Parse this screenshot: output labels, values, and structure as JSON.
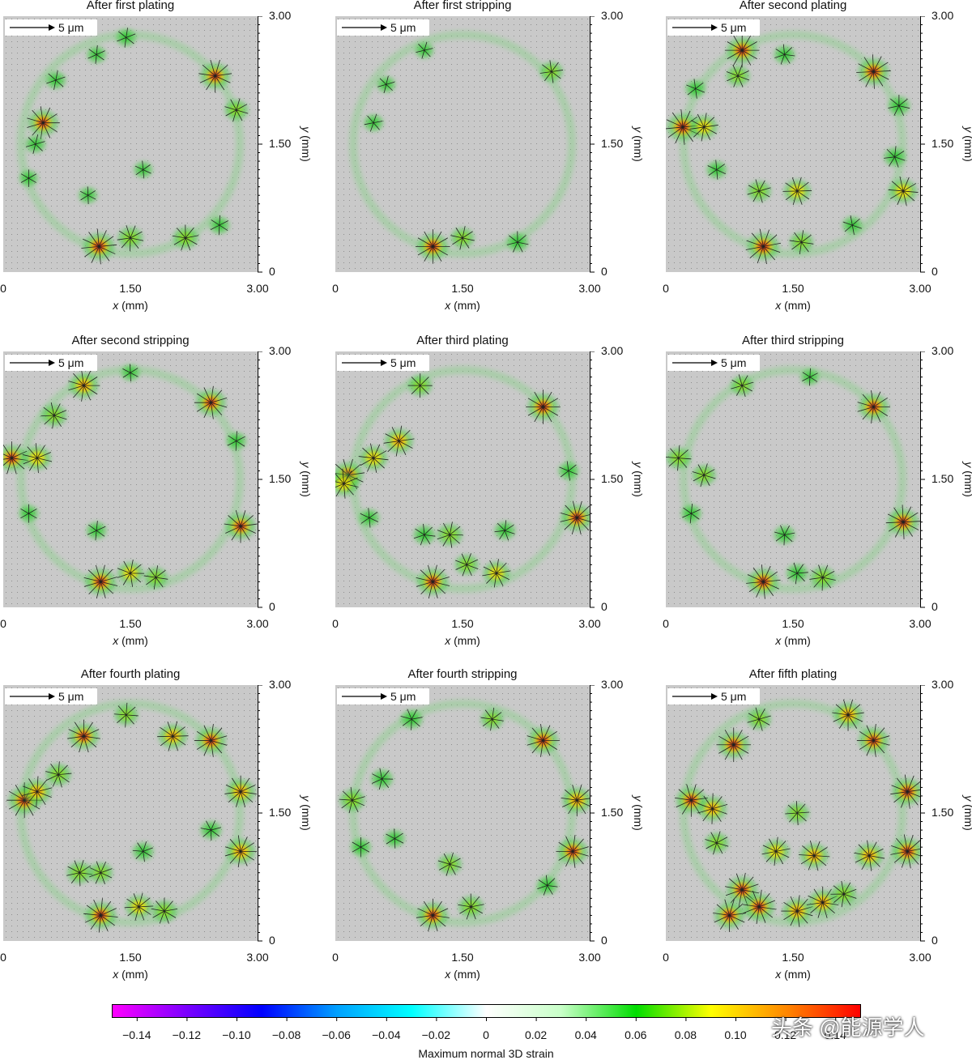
{
  "chart_data": {
    "type": "heatmap",
    "panels": [
      {
        "title": "After first plating",
        "spots": [
          [
            0.47,
            1.75,
            0.9
          ],
          [
            2.5,
            2.3,
            0.9
          ],
          [
            1.13,
            0.3,
            1.0
          ],
          [
            1.5,
            0.4,
            0.6
          ],
          [
            2.15,
            0.4,
            0.6
          ],
          [
            2.75,
            1.9,
            0.5
          ],
          [
            0.38,
            1.5,
            0.3
          ],
          [
            0.62,
            2.25,
            0.3
          ],
          [
            1.45,
            2.75,
            0.3
          ],
          [
            1.1,
            2.55,
            0.25
          ],
          [
            2.55,
            0.55,
            0.3
          ],
          [
            0.3,
            1.1,
            0.2
          ],
          [
            1.0,
            0.9,
            0.2
          ],
          [
            1.65,
            1.2,
            0.2
          ]
        ]
      },
      {
        "title": "After first stripping",
        "spots": [
          [
            1.15,
            0.3,
            0.95
          ],
          [
            1.5,
            0.4,
            0.5
          ],
          [
            2.15,
            0.35,
            0.4
          ],
          [
            2.55,
            2.35,
            0.45
          ],
          [
            0.45,
            1.75,
            0.25
          ],
          [
            1.05,
            2.6,
            0.2
          ],
          [
            0.6,
            2.2,
            0.2
          ]
        ]
      },
      {
        "title": "After second plating",
        "spots": [
          [
            0.9,
            2.6,
            0.95
          ],
          [
            2.45,
            2.35,
            0.95
          ],
          [
            0.2,
            1.7,
            1.0
          ],
          [
            0.45,
            1.7,
            0.7
          ],
          [
            1.15,
            0.3,
            1.0
          ],
          [
            1.55,
            0.95,
            0.7
          ],
          [
            1.1,
            0.95,
            0.5
          ],
          [
            2.8,
            0.95,
            0.75
          ],
          [
            1.6,
            0.35,
            0.5
          ],
          [
            0.85,
            2.3,
            0.5
          ],
          [
            1.4,
            2.55,
            0.35
          ],
          [
            2.75,
            1.95,
            0.4
          ],
          [
            2.7,
            1.35,
            0.4
          ],
          [
            0.6,
            1.2,
            0.3
          ],
          [
            0.35,
            2.15,
            0.3
          ],
          [
            2.2,
            0.55,
            0.3
          ]
        ]
      },
      {
        "title": "After second stripping",
        "spots": [
          [
            0.95,
            2.6,
            0.85
          ],
          [
            0.6,
            2.25,
            0.6
          ],
          [
            2.45,
            2.4,
            0.9
          ],
          [
            0.1,
            1.75,
            0.9
          ],
          [
            0.4,
            1.75,
            0.75
          ],
          [
            2.8,
            0.95,
            0.9
          ],
          [
            1.15,
            0.3,
            0.95
          ],
          [
            1.5,
            0.4,
            0.65
          ],
          [
            1.8,
            0.35,
            0.5
          ],
          [
            1.1,
            0.9,
            0.3
          ],
          [
            2.75,
            1.95,
            0.3
          ],
          [
            0.3,
            1.1,
            0.25
          ],
          [
            1.5,
            2.75,
            0.2
          ]
        ]
      },
      {
        "title": "After third plating",
        "spots": [
          [
            2.45,
            2.35,
            0.95
          ],
          [
            0.15,
            1.55,
            0.9
          ],
          [
            0.45,
            1.75,
            0.75
          ],
          [
            0.75,
            1.95,
            0.8
          ],
          [
            0.1,
            1.45,
            0.75
          ],
          [
            2.85,
            1.05,
            0.95
          ],
          [
            1.15,
            0.3,
            0.95
          ],
          [
            1.35,
            0.85,
            0.6
          ],
          [
            1.9,
            0.4,
            0.7
          ],
          [
            1.55,
            0.5,
            0.5
          ],
          [
            1.05,
            0.85,
            0.4
          ],
          [
            1.0,
            2.6,
            0.5
          ],
          [
            2.0,
            0.9,
            0.35
          ],
          [
            0.4,
            1.05,
            0.3
          ],
          [
            2.75,
            1.6,
            0.3
          ]
        ]
      },
      {
        "title": "After third stripping",
        "spots": [
          [
            2.45,
            2.35,
            0.9
          ],
          [
            2.8,
            1.0,
            0.95
          ],
          [
            1.15,
            0.3,
            0.95
          ],
          [
            1.85,
            0.35,
            0.6
          ],
          [
            0.15,
            1.75,
            0.55
          ],
          [
            0.45,
            1.55,
            0.5
          ],
          [
            0.9,
            2.6,
            0.45
          ],
          [
            1.4,
            0.85,
            0.35
          ],
          [
            1.55,
            0.4,
            0.4
          ],
          [
            0.3,
            1.1,
            0.3
          ],
          [
            1.7,
            2.7,
            0.2
          ]
        ]
      },
      {
        "title": "After fourth plating",
        "spots": [
          [
            0.25,
            1.65,
            1.0
          ],
          [
            0.4,
            1.75,
            0.8
          ],
          [
            0.65,
            1.95,
            0.6
          ],
          [
            0.95,
            2.4,
            0.9
          ],
          [
            1.45,
            2.65,
            0.5
          ],
          [
            2.0,
            2.4,
            0.8
          ],
          [
            2.45,
            2.35,
            0.9
          ],
          [
            2.8,
            1.75,
            0.85
          ],
          [
            2.8,
            1.05,
            0.85
          ],
          [
            1.15,
            0.3,
            0.95
          ],
          [
            1.6,
            0.4,
            0.7
          ],
          [
            1.9,
            0.35,
            0.6
          ],
          [
            0.9,
            0.8,
            0.6
          ],
          [
            1.15,
            0.8,
            0.5
          ],
          [
            1.65,
            1.05,
            0.35
          ],
          [
            2.45,
            1.3,
            0.35
          ]
        ]
      },
      {
        "title": "After fourth stripping",
        "spots": [
          [
            2.45,
            2.35,
            0.9
          ],
          [
            2.85,
            1.65,
            0.85
          ],
          [
            2.8,
            1.05,
            0.9
          ],
          [
            1.15,
            0.3,
            0.9
          ],
          [
            1.6,
            0.4,
            0.6
          ],
          [
            1.35,
            0.9,
            0.5
          ],
          [
            0.2,
            1.65,
            0.6
          ],
          [
            0.9,
            2.6,
            0.4
          ],
          [
            1.85,
            2.6,
            0.45
          ],
          [
            0.55,
            1.9,
            0.4
          ],
          [
            2.5,
            0.65,
            0.35
          ],
          [
            0.3,
            1.1,
            0.3
          ],
          [
            0.7,
            1.2,
            0.3
          ]
        ]
      },
      {
        "title": "After fifth plating",
        "spots": [
          [
            0.8,
            2.3,
            0.95
          ],
          [
            2.15,
            2.65,
            0.85
          ],
          [
            2.45,
            2.35,
            0.9
          ],
          [
            2.85,
            1.75,
            0.95
          ],
          [
            2.85,
            1.05,
            0.95
          ],
          [
            0.3,
            1.65,
            0.9
          ],
          [
            0.55,
            1.55,
            0.8
          ],
          [
            0.9,
            0.6,
            0.95
          ],
          [
            1.1,
            0.4,
            0.95
          ],
          [
            0.75,
            0.3,
            0.9
          ],
          [
            1.55,
            0.35,
            0.85
          ],
          [
            1.85,
            0.45,
            0.85
          ],
          [
            1.75,
            1.0,
            0.8
          ],
          [
            1.3,
            1.05,
            0.7
          ],
          [
            2.4,
            1.0,
            0.8
          ],
          [
            2.1,
            0.55,
            0.6
          ],
          [
            0.6,
            1.15,
            0.5
          ],
          [
            1.1,
            2.6,
            0.5
          ],
          [
            1.55,
            1.5,
            0.5
          ]
        ]
      }
    ],
    "x_ticks": [
      "0",
      "1.50",
      "3.00"
    ],
    "y_ticks": [
      "3.00",
      "1.50",
      "0"
    ],
    "xlabel_var": "x",
    "xlabel_unit": " (mm)",
    "ylabel_var": "y",
    "ylabel_unit": " (mm)",
    "xlim": [
      0,
      3
    ],
    "ylim": [
      0,
      3
    ],
    "scale_bar_label": "5 μm",
    "colorbar": {
      "label": "Maximum normal 3D strain",
      "range": [
        -0.15,
        0.15
      ],
      "ticks": [
        "−0.14",
        "−0.12",
        "−0.10",
        "−0.08",
        "−0.06",
        "−0.04",
        "−0.02",
        "0",
        "0.02",
        "0.04",
        "0.06",
        "0.08",
        "0.10",
        "0.12",
        "0.14"
      ],
      "tick_values": [
        -0.14,
        -0.12,
        -0.1,
        -0.08,
        -0.06,
        -0.04,
        -0.02,
        0,
        0.02,
        0.04,
        0.06,
        0.08,
        0.1,
        0.12,
        0.14
      ],
      "colors": [
        "#ff00ff",
        "#7a00ff",
        "#0000ff",
        "#00a0ff",
        "#00ffff",
        "#ffffff",
        "#c8ffc8",
        "#00dd00",
        "#ffff00",
        "#ff8800",
        "#ff0000"
      ]
    }
  },
  "watermark": "头条 @能源学人"
}
